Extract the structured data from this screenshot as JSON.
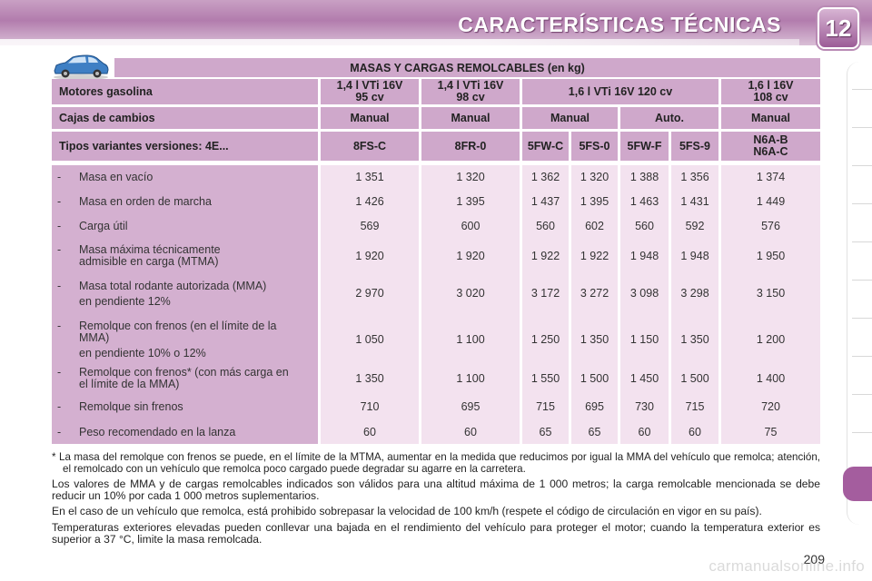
{
  "header": {
    "title": "CARACTERÍSTICAS TÉCNICAS",
    "chapter": "12"
  },
  "table": {
    "caption": "MASAS Y CARGAS REMOLCABLES (en kg)",
    "engine_label": "Motores gasolina",
    "engines": [
      {
        "line1": "1,4 l VTi 16V",
        "line2": "95 cv"
      },
      {
        "line1": "1,4 l VTi 16V",
        "line2": "98 cv"
      },
      {
        "line1": "1,6 l VTi 16V 120 cv",
        "line2": ""
      },
      {
        "line1": "1,6 l 16V",
        "line2": "108 cv"
      }
    ],
    "gearbox_label": "Cajas de cambios",
    "gearboxes": [
      "Manual",
      "Manual",
      "Manual",
      "Auto.",
      "Manual"
    ],
    "variants_label": "Tipos variantes versiones: 4E...",
    "variants": [
      "8FS-C",
      "8FR-0",
      "5FW-C",
      "5FS-0",
      "5FW-F",
      "5FS-9"
    ],
    "variant_last": {
      "line1": "N6A-B",
      "line2": "N6A-C"
    },
    "rows": [
      {
        "label": "Masa en vacío",
        "sub": "",
        "values": [
          "1 351",
          "1 320",
          "1 362",
          "1 320",
          "1 388",
          "1 356",
          "1 374"
        ]
      },
      {
        "label": "Masa en orden de marcha",
        "sub": "",
        "values": [
          "1 426",
          "1 395",
          "1 437",
          "1 395",
          "1 463",
          "1 431",
          "1 449"
        ]
      },
      {
        "label": "Carga útil",
        "sub": "",
        "values": [
          "569",
          "600",
          "560",
          "602",
          "560",
          "592",
          "576"
        ]
      },
      {
        "label": "Masa máxima técnicamente admisible en carga (MTMA)",
        "sub": "",
        "values": [
          "1 920",
          "1 920",
          "1 922",
          "1 922",
          "1 948",
          "1 948",
          "1 950"
        ]
      },
      {
        "label": "Masa total rodante autorizada (MMA)",
        "sub": "en pendiente 12%",
        "values": [
          "2 970",
          "3 020",
          "3 172",
          "3 272",
          "3 098",
          "3 298",
          "3 150"
        ]
      },
      {
        "label": "Remolque con frenos (en el límite de la MMA)",
        "sub": "en pendiente 10% o 12%",
        "values": [
          "1 050",
          "1 100",
          "1 250",
          "1 350",
          "1 150",
          "1 350",
          "1 200"
        ]
      },
      {
        "label": "Remolque con frenos* (con más carga en el límite de la MMA)",
        "sub": "",
        "values": [
          "1 350",
          "1 100",
          "1 550",
          "1 500",
          "1 450",
          "1 500",
          "1 400"
        ]
      },
      {
        "label": "Remolque sin frenos",
        "sub": "",
        "values": [
          "710",
          "695",
          "715",
          "695",
          "730",
          "715",
          "720"
        ]
      },
      {
        "label": "Peso recomendado en la lanza",
        "sub": "",
        "values": [
          "60",
          "60",
          "65",
          "65",
          "60",
          "60",
          "75"
        ]
      }
    ],
    "dash": "-"
  },
  "notes": {
    "footnote": "* La masa del remolque con frenos se puede, en el límite de la MTMA, aumentar en la medida que reducimos por igual la MMA del vehículo que remolca; atención, el remolcado con un vehículo que remolca poco cargado puede degradar su agarre en la carretera.",
    "p1": "Los valores de MMA y de cargas remolcables indicados son válidos para una altitud máxima de 1 000 metros; la carga remolcable mencionada se debe reducir un 10% por cada 1 000 metros suplementarios.",
    "p2": "En el caso de un vehículo que remolca, está prohibido sobrepasar la velocidad de 100 km/h (respete el código de circulación en vigor en su país).",
    "p3": "Temperaturas exteriores elevadas pueden conllevar una bajada en el rendimiento del vehículo para proteger el motor; cuando la temperatura exterior es superior a 37 °C, limite la masa remolcada."
  },
  "footer": {
    "page_number": "209",
    "watermark": "carmanualsonline.info"
  },
  "colors": {
    "header_band": "#b27cad",
    "table_header": "#cfa8cb",
    "label_column": "#d4b0d0",
    "data_cell": "#f3e2ef",
    "active_tab": "#a45d9e"
  }
}
